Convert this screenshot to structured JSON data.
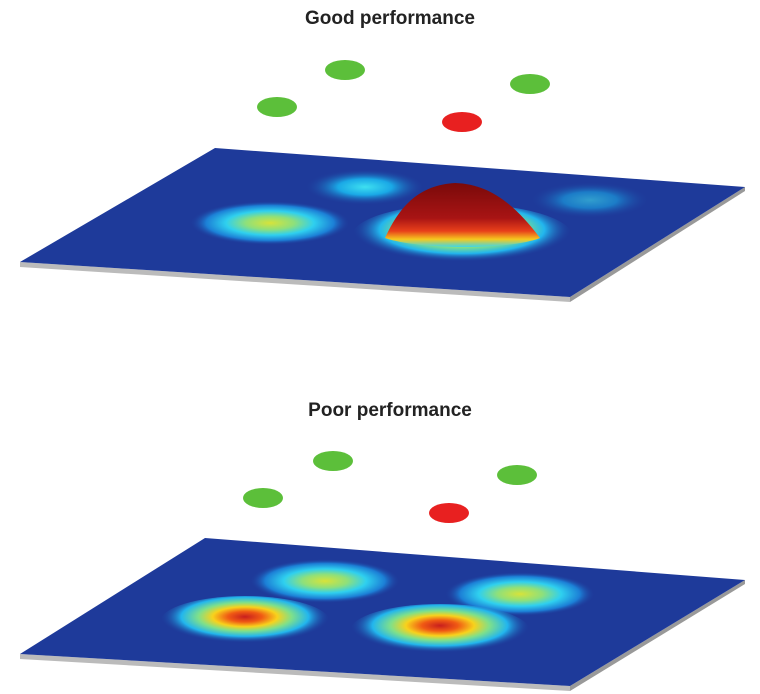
{
  "panels": [
    {
      "title": "Good performance"
    },
    {
      "title": "Poor performance"
    }
  ]
}
